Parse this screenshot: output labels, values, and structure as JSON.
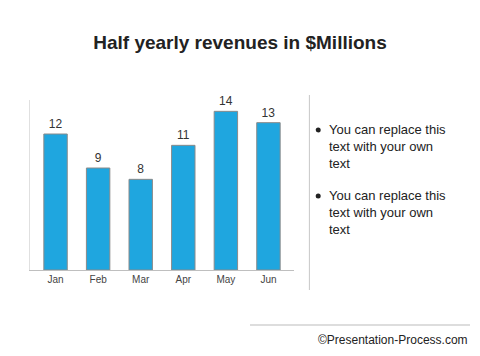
{
  "chart_data": {
    "type": "bar",
    "title": "Half yearly revenues in $Millions",
    "categories": [
      "Jan",
      "Feb",
      "Mar",
      "Apr",
      "May",
      "Jun"
    ],
    "values": [
      12,
      9,
      8,
      11,
      14,
      13
    ],
    "color": "#1fa6df",
    "ylim": [
      0,
      15
    ],
    "data_labels": true,
    "tick_labels": "x",
    "grid": false
  },
  "bullets": [
    "You can replace this text with your own text",
    "You can replace this text with your own text"
  ],
  "footer": "©Presentation-Process.com"
}
